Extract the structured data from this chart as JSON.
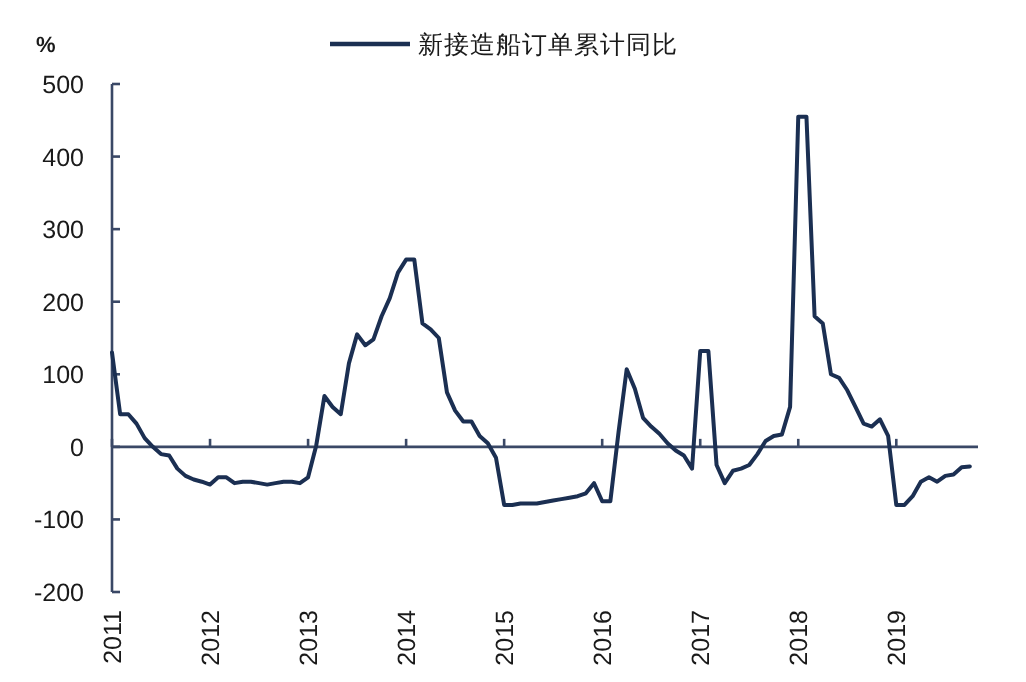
{
  "chart_data": {
    "type": "line",
    "ylabel": "%",
    "legend": "top",
    "x": [
      "2011-01",
      "2011-02",
      "2011-03",
      "2011-04",
      "2011-05",
      "2011-06",
      "2011-07",
      "2011-08",
      "2011-09",
      "2011-10",
      "2011-11",
      "2011-12",
      "2012-01",
      "2012-02",
      "2012-03",
      "2012-04",
      "2012-05",
      "2012-06",
      "2012-07",
      "2012-08",
      "2012-09",
      "2012-10",
      "2012-11",
      "2012-12",
      "2013-01",
      "2013-02",
      "2013-03",
      "2013-04",
      "2013-05",
      "2013-06",
      "2013-07",
      "2013-08",
      "2013-09",
      "2013-10",
      "2013-11",
      "2013-12",
      "2014-01",
      "2014-02",
      "2014-03",
      "2014-04",
      "2014-05",
      "2014-06",
      "2014-07",
      "2014-08",
      "2014-09",
      "2014-10",
      "2014-11",
      "2014-12",
      "2015-01",
      "2015-02",
      "2015-03",
      "2015-04",
      "2015-05",
      "2015-06",
      "2015-07",
      "2015-08",
      "2015-09",
      "2015-10",
      "2015-11",
      "2015-12",
      "2016-01",
      "2016-02",
      "2016-03",
      "2016-04",
      "2016-05",
      "2016-06",
      "2016-07",
      "2016-08",
      "2016-09",
      "2016-10",
      "2016-11",
      "2016-12",
      "2017-01",
      "2017-02",
      "2017-03",
      "2017-04",
      "2017-05",
      "2017-06",
      "2017-07",
      "2017-08",
      "2017-09",
      "2017-10",
      "2017-11",
      "2017-12",
      "2018-01",
      "2018-02",
      "2018-03",
      "2018-04",
      "2018-05",
      "2018-06",
      "2018-07",
      "2018-08",
      "2018-09",
      "2018-10",
      "2018-11",
      "2018-12",
      "2019-01",
      "2019-02",
      "2019-03",
      "2019-04",
      "2019-05",
      "2019-06",
      "2019-07",
      "2019-08",
      "2019-09",
      "2019-10"
    ],
    "series": [
      {
        "name": "新接造船订单累计同比",
        "color": "#1b2f52",
        "values": [
          130,
          45,
          45,
          32,
          12,
          0,
          -10,
          -12,
          -30,
          -40,
          -45,
          -48,
          -52,
          -42,
          -42,
          -50,
          -48,
          -48,
          -50,
          -52,
          -50,
          -48,
          -48,
          -50,
          -42,
          2,
          70,
          55,
          45,
          115,
          155,
          140,
          148,
          180,
          205,
          240,
          258,
          258,
          170,
          162,
          150,
          75,
          50,
          35,
          35,
          15,
          5,
          -15,
          -80,
          -80,
          -78,
          -78,
          -78,
          -76,
          -74,
          -72,
          -70,
          -68,
          -64,
          -50,
          -75,
          -75,
          20,
          107,
          80,
          40,
          28,
          18,
          5,
          -5,
          -12,
          -30,
          132,
          132,
          -25,
          -50,
          -33,
          -30,
          -25,
          -10,
          8,
          15,
          17,
          55,
          455,
          455,
          180,
          170,
          100,
          95,
          78,
          55,
          32,
          28,
          38,
          15,
          -80,
          -80,
          -68,
          -48,
          -42,
          -48,
          -40,
          -38,
          -28,
          -27
        ]
      }
    ],
    "xlim": [
      "2011-01",
      "2019-11"
    ],
    "xticks": [
      "2011",
      "2012",
      "2013",
      "2014",
      "2015",
      "2016",
      "2017",
      "2018",
      "2019"
    ],
    "ylim": [
      -200,
      500
    ],
    "yticks": [
      -200,
      -100,
      0,
      100,
      200,
      300,
      400,
      500
    ],
    "ref_lines": [
      {
        "axis": "y",
        "value": 0,
        "color": "#3a4866"
      }
    ],
    "marker": "none",
    "line_style": "solid",
    "grid": false
  }
}
